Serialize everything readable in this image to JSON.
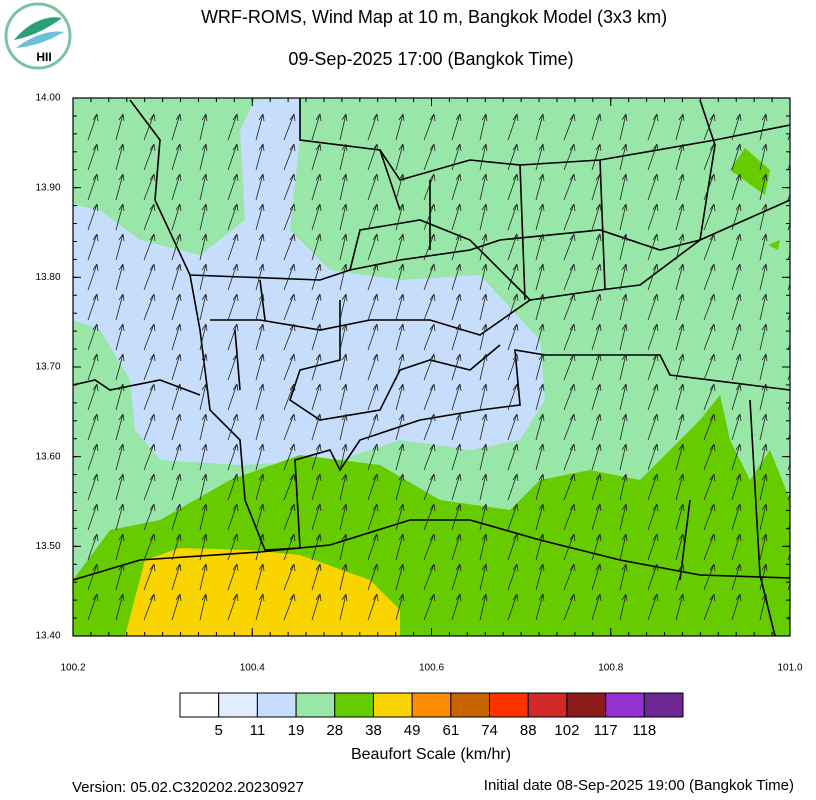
{
  "header": {
    "title": "WRF-ROMS, Wind Map at 10 m, Bangkok Model (3x3 km)",
    "subtitle": "09-Sep-2025 17:00 (Bangkok Time)",
    "logo": "HII"
  },
  "map": {
    "lon_labels": [
      "100.2",
      "100.4",
      "100.6",
      "100.8",
      "101.0"
    ],
    "lat_labels": [
      "14.00",
      "13.90",
      "13.80",
      "13.70",
      "13.60",
      "13.50",
      "13.40"
    ]
  },
  "legend": {
    "title": "Beaufort Scale (km/hr)",
    "colors": [
      "#ffffff",
      "#e1ecff",
      "#c6ddfb",
      "#98e6a8",
      "#66cc00",
      "#f9d400",
      "#ff8c00",
      "#c86400",
      "#ff3200",
      "#d22828",
      "#8c1c1c",
      "#9632d2",
      "#6e2896"
    ],
    "labels": [
      5,
      11,
      19,
      28,
      38,
      49,
      61,
      74,
      88,
      102,
      117,
      118
    ]
  },
  "footer": {
    "version": "Version: 05.02.C320202.20230927",
    "initial": "Initial date 08-Sep-2025 19:00 (Bangkok Time)"
  }
}
